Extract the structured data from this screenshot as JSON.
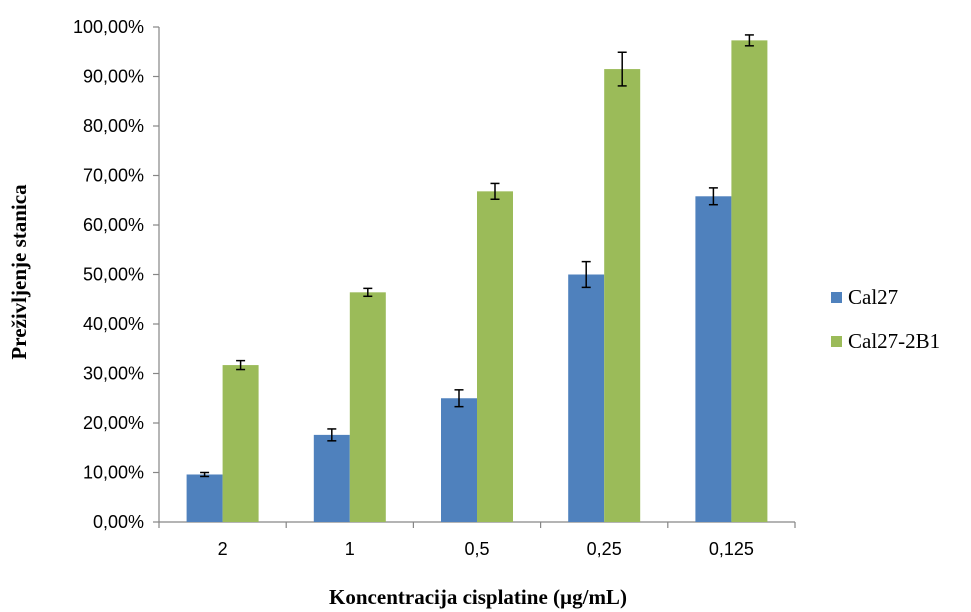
{
  "chart_data": {
    "type": "bar",
    "title": "",
    "xlabel": "Koncentracija cisplatine (µg/mL)",
    "ylabel": "Preživljenje stanica",
    "categories": [
      "2",
      "1",
      "0,5",
      "0,25",
      "0,125"
    ],
    "ylim": [
      0,
      1
    ],
    "yticks": [
      "0,00%",
      "10,00%",
      "20,00%",
      "30,00%",
      "40,00%",
      "50,00%",
      "60,00%",
      "70,00%",
      "80,00%",
      "90,00%",
      "100,00%"
    ],
    "grid": false,
    "legend_position": "right",
    "series": [
      {
        "name": "Cal27",
        "color": "#4F81BD",
        "values": [
          0.096,
          0.176,
          0.25,
          0.5,
          0.658
        ],
        "errors": [
          0.004,
          0.012,
          0.017,
          0.026,
          0.017
        ]
      },
      {
        "name": "Cal27-2B1",
        "color": "#9BBB59",
        "values": [
          0.317,
          0.464,
          0.668,
          0.915,
          0.973
        ],
        "errors": [
          0.009,
          0.008,
          0.016,
          0.034,
          0.011
        ]
      }
    ]
  }
}
